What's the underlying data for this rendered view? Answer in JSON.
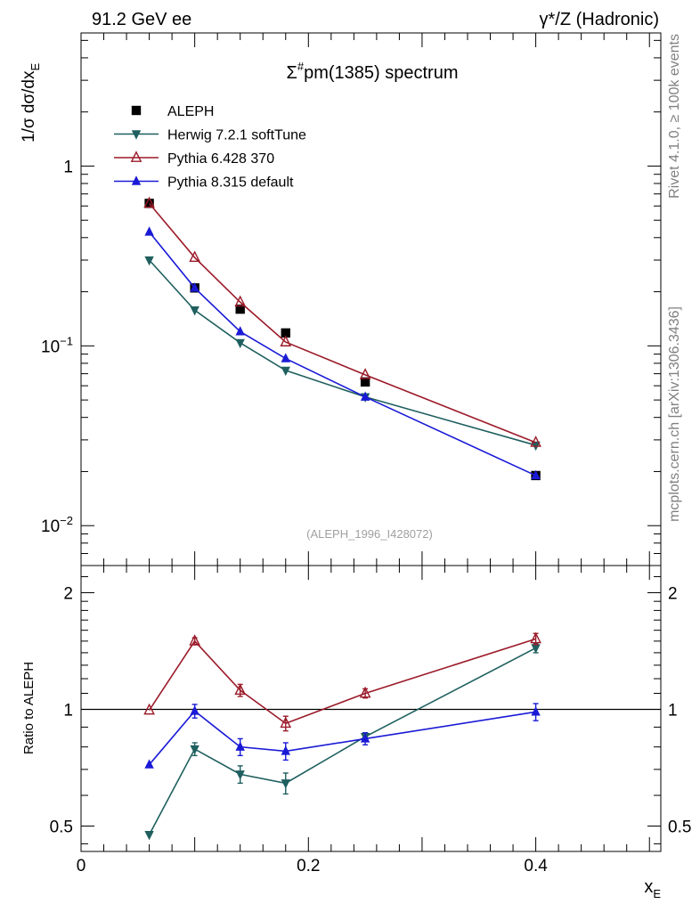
{
  "header": {
    "left": "91.2 GeV ee",
    "right_prefix": "γ*/Z",
    "right_suffix": " (Hadronic)"
  },
  "side_labels": {
    "rivet": "Rivet 4.1.0, ≥ 100k events",
    "mcplots": "mcplots.cern.ch [arXiv:1306.3436]"
  },
  "chart_data": [
    {
      "type": "scatter",
      "title_prefix": "Σ",
      "title_sup": "#",
      "title_suffix": "pm(1385) spectrum",
      "ylabel_main": "1/σ  dσ/dx",
      "ylabel_sub": "E",
      "yscale": "log",
      "ylim": [
        0.006,
        5.5
      ],
      "xlim": [
        0,
        0.51
      ],
      "y_ticks": [
        {
          "v": 1,
          "base": "1",
          "exp": ""
        },
        {
          "v": 0.1,
          "base": "10",
          "exp": "−1"
        },
        {
          "v": 0.01,
          "base": "10",
          "exp": "−2"
        }
      ],
      "watermark": "(ALEPH_1996_I428072)",
      "x": [
        0.06,
        0.1,
        0.14,
        0.18,
        0.25,
        0.4
      ],
      "series": [
        {
          "name": "ALEPH",
          "color": "#000000",
          "marker": "square",
          "line": false,
          "values": [
            0.62,
            0.21,
            0.16,
            0.118,
            0.063,
            0.019
          ]
        },
        {
          "name": "Herwig 7.2.1 softTune",
          "color": "#1f5f5f",
          "marker": "triangle-down",
          "line": true,
          "values": [
            0.3,
            0.158,
            0.104,
            0.073,
            0.052,
            0.028
          ]
        },
        {
          "name": "Pythia 6.428 370",
          "color": "#9b1b2a",
          "marker": "triangle-up-open",
          "line": true,
          "values": [
            0.62,
            0.31,
            0.175,
            0.105,
            0.069,
            0.029
          ]
        },
        {
          "name": "Pythia 8.315 default",
          "color": "#1a1ad6",
          "marker": "triangle-up",
          "line": true,
          "values": [
            0.43,
            0.21,
            0.12,
            0.085,
            0.052,
            0.019
          ]
        }
      ]
    },
    {
      "type": "scatter",
      "ylabel": "Ratio to ALEPH",
      "xlabel_main": "x",
      "xlabel_sub": "E",
      "yscale": "log",
      "ylim": [
        0.43,
        2.35
      ],
      "xlim": [
        0,
        0.51
      ],
      "y_tick_labels": [
        {
          "v": 0.5,
          "label": "0.5"
        },
        {
          "v": 1,
          "label": "1"
        },
        {
          "v": 2,
          "label": "2"
        }
      ],
      "x_tick_labels": [
        {
          "v": 0,
          "label": "0"
        },
        {
          "v": 0.2,
          "label": "0.2"
        },
        {
          "v": 0.4,
          "label": "0.4"
        }
      ],
      "x": [
        0.06,
        0.1,
        0.14,
        0.18,
        0.25,
        0.4
      ],
      "series": [
        {
          "name": "Herwig 7.2.1 softTune",
          "color": "#1f5f5f",
          "marker": "triangle-down",
          "values": [
            0.475,
            0.79,
            0.68,
            0.645,
            0.85,
            1.44
          ],
          "errors": [
            0.0,
            0.03,
            0.035,
            0.04,
            0.02,
            0.04
          ]
        },
        {
          "name": "Pythia 6.428 370",
          "color": "#9b1b2a",
          "marker": "triangle-up-open",
          "values": [
            0.995,
            1.5,
            1.12,
            0.92,
            1.1,
            1.52
          ],
          "errors": [
            0.0,
            0.03,
            0.04,
            0.04,
            0.03,
            0.05
          ]
        },
        {
          "name": "Pythia 8.315 default",
          "color": "#1a1ad6",
          "marker": "triangle-up",
          "values": [
            0.72,
            0.99,
            0.8,
            0.78,
            0.84,
            0.985
          ],
          "errors": [
            0.0,
            0.04,
            0.04,
            0.04,
            0.03,
            0.05
          ]
        }
      ]
    }
  ]
}
